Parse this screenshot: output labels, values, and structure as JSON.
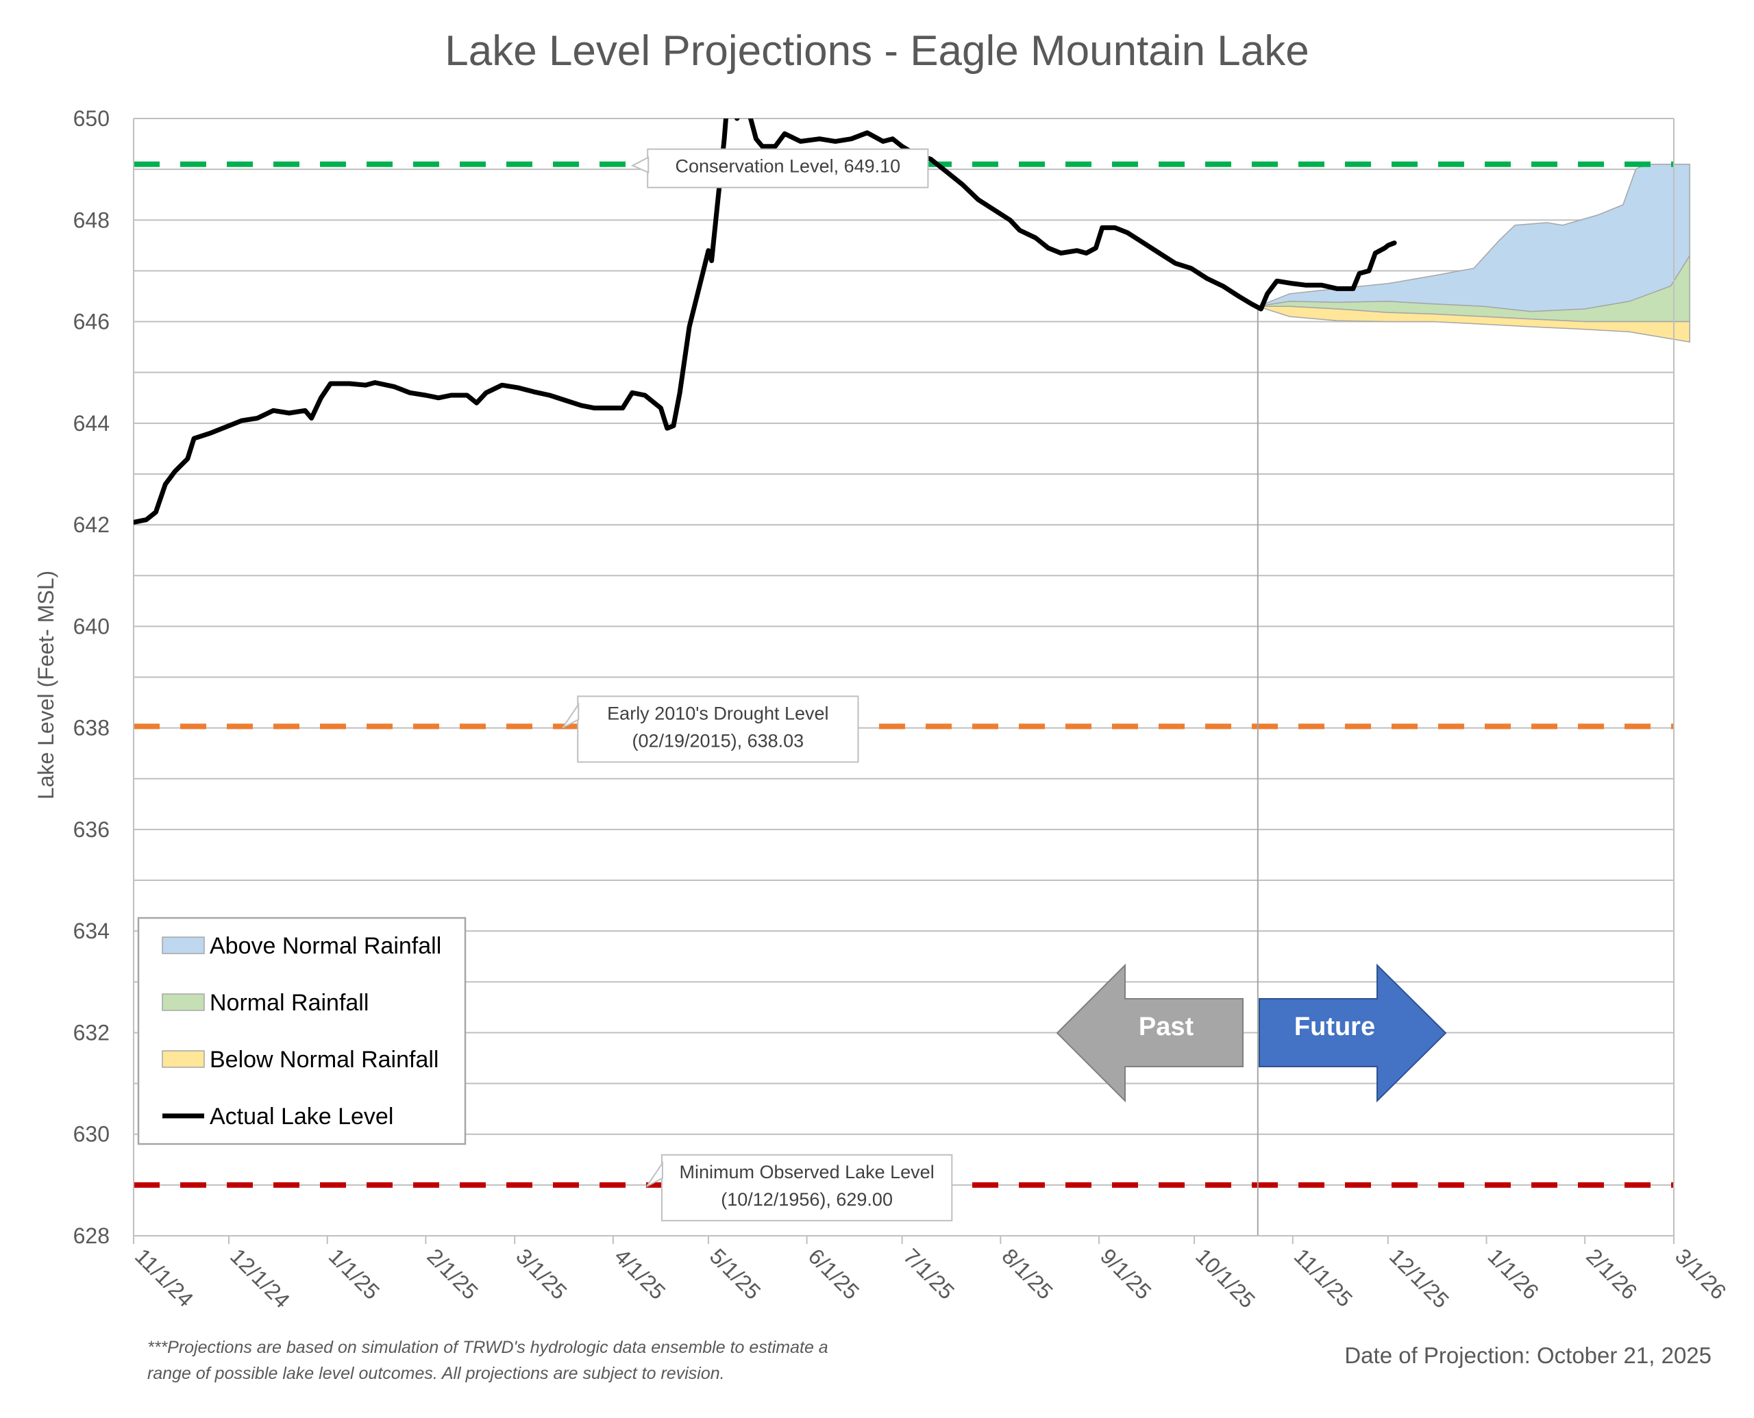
{
  "chart_data": {
    "type": "area",
    "title": "Lake Level Projections - Eagle Mountain Lake",
    "ylabel": "Lake Level (Feet- MSL)",
    "xlabel": "",
    "ylim": [
      628,
      650
    ],
    "yticks": [
      628,
      630,
      632,
      634,
      636,
      638,
      640,
      642,
      644,
      646,
      648,
      650
    ],
    "x_tick_labels": [
      "11/1/24",
      "12/1/24",
      "1/1/25",
      "2/1/25",
      "3/1/25",
      "4/1/25",
      "5/1/25",
      "6/1/25",
      "7/1/25",
      "8/1/25",
      "9/1/25",
      "10/1/25",
      "11/1/25",
      "12/1/25",
      "1/1/26",
      "2/1/26",
      "3/1/26"
    ],
    "x_tick_dates": [
      "2024-11-01",
      "2024-12-01",
      "2025-01-01",
      "2025-02-01",
      "2025-03-01",
      "2025-04-01",
      "2025-05-01",
      "2025-06-01",
      "2025-07-01",
      "2025-08-01",
      "2025-09-01",
      "2025-10-01",
      "2025-11-01",
      "2025-12-01",
      "2026-01-01",
      "2026-02-01",
      "2026-03-01"
    ],
    "xlim": [
      "2024-11-01",
      "2026-03-01"
    ],
    "grid": true,
    "legend_position": "bottom-left",
    "projection_date": "2025-10-21",
    "reference_lines": [
      {
        "name": "Conservation Level",
        "value": 649.1,
        "color": "#00b050",
        "label": "Conservation Level, 649.10",
        "label_date": "2025-05-26"
      },
      {
        "name": "Early 2010's Drought Level",
        "value": 638.03,
        "color": "#ed7d31",
        "label_lines": [
          "Early 2010's Drought Level",
          "(02/19/2015), 638.03"
        ],
        "label_date": "2025-05-04"
      },
      {
        "name": "Minimum Observed Lake Level",
        "value": 629.0,
        "color": "#c00000",
        "label_lines": [
          "Minimum Observed Lake Level",
          "(10/12/1956), 629.00"
        ],
        "label_date": "2025-06-01"
      }
    ],
    "series": [
      {
        "name": "Actual Lake Level",
        "type": "line",
        "color": "#000000",
        "points": [
          [
            "2024-11-01",
            642.05
          ],
          [
            "2024-11-05",
            642.1
          ],
          [
            "2024-11-08",
            642.25
          ],
          [
            "2024-11-11",
            642.8
          ],
          [
            "2024-11-14",
            643.05
          ],
          [
            "2024-11-18",
            643.3
          ],
          [
            "2024-11-20",
            643.7
          ],
          [
            "2024-11-25",
            643.8
          ],
          [
            "2024-12-01",
            643.95
          ],
          [
            "2024-12-05",
            644.05
          ],
          [
            "2024-12-10",
            644.1
          ],
          [
            "2024-12-15",
            644.25
          ],
          [
            "2024-12-20",
            644.2
          ],
          [
            "2024-12-25",
            644.25
          ],
          [
            "2024-12-27",
            644.1
          ],
          [
            "2024-12-30",
            644.5
          ],
          [
            "2025-01-02",
            644.78
          ],
          [
            "2025-01-08",
            644.78
          ],
          [
            "2025-01-13",
            644.75
          ],
          [
            "2025-01-16",
            644.8
          ],
          [
            "2025-01-22",
            644.72
          ],
          [
            "2025-01-27",
            644.6
          ],
          [
            "2025-02-01",
            644.55
          ],
          [
            "2025-02-05",
            644.5
          ],
          [
            "2025-02-09",
            644.55
          ],
          [
            "2025-02-14",
            644.55
          ],
          [
            "2025-02-17",
            644.4
          ],
          [
            "2025-02-20",
            644.6
          ],
          [
            "2025-02-25",
            644.75
          ],
          [
            "2025-03-02",
            644.7
          ],
          [
            "2025-03-07",
            644.62
          ],
          [
            "2025-03-12",
            644.55
          ],
          [
            "2025-03-17",
            644.45
          ],
          [
            "2025-03-22",
            644.35
          ],
          [
            "2025-03-26",
            644.3
          ],
          [
            "2025-03-31",
            644.3
          ],
          [
            "2025-04-04",
            644.3
          ],
          [
            "2025-04-07",
            644.6
          ],
          [
            "2025-04-11",
            644.55
          ],
          [
            "2025-04-14",
            644.4
          ],
          [
            "2025-04-16",
            644.3
          ],
          [
            "2025-04-18",
            643.9
          ],
          [
            "2025-04-20",
            643.95
          ],
          [
            "2025-04-22",
            644.6
          ],
          [
            "2025-04-25",
            645.9
          ],
          [
            "2025-04-29",
            646.9
          ],
          [
            "2025-05-01",
            647.4
          ],
          [
            "2025-05-02",
            647.2
          ],
          [
            "2025-05-04",
            648.4
          ],
          [
            "2025-05-06",
            649.6
          ],
          [
            "2025-05-07",
            650.4
          ],
          [
            "2025-05-10",
            650.0
          ],
          [
            "2025-05-13",
            650.3
          ],
          [
            "2025-05-16",
            649.6
          ],
          [
            "2025-05-18",
            649.45
          ],
          [
            "2025-05-22",
            649.45
          ],
          [
            "2025-05-25",
            649.7
          ],
          [
            "2025-05-30",
            649.55
          ],
          [
            "2025-06-05",
            649.6
          ],
          [
            "2025-06-10",
            649.55
          ],
          [
            "2025-06-15",
            649.6
          ],
          [
            "2025-06-20",
            649.72
          ],
          [
            "2025-06-25",
            649.55
          ],
          [
            "2025-06-28",
            649.6
          ],
          [
            "2025-07-01",
            649.45
          ],
          [
            "2025-07-05",
            649.3
          ],
          [
            "2025-07-10",
            649.2
          ],
          [
            "2025-07-15",
            648.95
          ],
          [
            "2025-07-20",
            648.7
          ],
          [
            "2025-07-25",
            648.4
          ],
          [
            "2025-07-30",
            648.2
          ],
          [
            "2025-08-04",
            648.0
          ],
          [
            "2025-08-07",
            647.8
          ],
          [
            "2025-08-12",
            647.65
          ],
          [
            "2025-08-16",
            647.45
          ],
          [
            "2025-08-20",
            647.35
          ],
          [
            "2025-08-25",
            647.4
          ],
          [
            "2025-08-28",
            647.35
          ],
          [
            "2025-08-31",
            647.45
          ],
          [
            "2025-09-02",
            647.85
          ],
          [
            "2025-09-06",
            647.85
          ],
          [
            "2025-09-10",
            647.75
          ],
          [
            "2025-09-15",
            647.55
          ],
          [
            "2025-09-20",
            647.35
          ],
          [
            "2025-09-25",
            647.15
          ],
          [
            "2025-09-30",
            647.05
          ],
          [
            "2025-10-05",
            646.85
          ],
          [
            "2025-10-10",
            646.7
          ],
          [
            "2025-10-15",
            646.5
          ],
          [
            "2025-10-19",
            646.35
          ],
          [
            "2025-10-22",
            646.25
          ],
          [
            "2025-10-24",
            646.55
          ],
          [
            "2025-10-27",
            646.8
          ],
          [
            "2025-11-01",
            646.75
          ],
          [
            "2025-11-05",
            646.72
          ],
          [
            "2025-11-10",
            646.72
          ],
          [
            "2025-11-15",
            646.65
          ],
          [
            "2025-11-20",
            646.65
          ],
          [
            "2025-11-22",
            646.95
          ],
          [
            "2025-11-25",
            647.0
          ],
          [
            "2025-11-27",
            647.35
          ],
          [
            "2025-11-30",
            647.45
          ],
          [
            "2025-12-01",
            647.5
          ],
          [
            "2025-12-03",
            647.55
          ]
        ]
      },
      {
        "name": "Above Normal Rainfall",
        "type": "band",
        "fill": "#bdd7ee",
        "upper": [
          [
            "2025-10-21",
            646.3
          ],
          [
            "2025-10-31",
            646.55
          ],
          [
            "2025-11-15",
            646.65
          ],
          [
            "2025-12-01",
            646.75
          ],
          [
            "2025-12-15",
            646.9
          ],
          [
            "2025-12-28",
            647.05
          ],
          [
            "2026-01-05",
            647.6
          ],
          [
            "2026-01-10",
            647.9
          ],
          [
            "2026-01-20",
            647.95
          ],
          [
            "2026-01-25",
            647.9
          ],
          [
            "2026-02-05",
            648.1
          ],
          [
            "2026-02-13",
            648.3
          ],
          [
            "2026-02-17",
            649.0
          ],
          [
            "2026-02-20",
            649.1
          ],
          [
            "2026-03-06",
            649.1
          ]
        ],
        "lower": [
          [
            "2025-10-21",
            646.3
          ],
          [
            "2025-10-31",
            646.4
          ],
          [
            "2025-11-15",
            646.38
          ],
          [
            "2025-12-01",
            646.4
          ],
          [
            "2025-12-15",
            646.35
          ],
          [
            "2025-12-31",
            646.3
          ],
          [
            "2026-01-15",
            646.2
          ],
          [
            "2026-02-01",
            646.25
          ],
          [
            "2026-02-15",
            646.4
          ],
          [
            "2026-02-28",
            646.7
          ],
          [
            "2026-03-06",
            647.3
          ]
        ]
      },
      {
        "name": "Normal Rainfall",
        "type": "band",
        "fill": "#c5e0b4",
        "upper": [
          [
            "2025-10-21",
            646.3
          ],
          [
            "2025-10-31",
            646.4
          ],
          [
            "2025-11-15",
            646.38
          ],
          [
            "2025-12-01",
            646.4
          ],
          [
            "2025-12-15",
            646.35
          ],
          [
            "2025-12-31",
            646.3
          ],
          [
            "2026-01-15",
            646.2
          ],
          [
            "2026-02-01",
            646.25
          ],
          [
            "2026-02-15",
            646.4
          ],
          [
            "2026-02-28",
            646.7
          ],
          [
            "2026-03-06",
            647.3
          ]
        ],
        "lower": [
          [
            "2025-10-21",
            646.3
          ],
          [
            "2025-10-31",
            646.3
          ],
          [
            "2025-11-15",
            646.25
          ],
          [
            "2025-12-01",
            646.18
          ],
          [
            "2025-12-15",
            646.15
          ],
          [
            "2025-12-31",
            646.1
          ],
          [
            "2026-01-15",
            646.05
          ],
          [
            "2026-02-01",
            646.0
          ],
          [
            "2026-02-15",
            646.0
          ],
          [
            "2026-03-06",
            646.0
          ]
        ]
      },
      {
        "name": "Below Normal Rainfall",
        "type": "band",
        "fill": "#ffe699",
        "upper": [
          [
            "2025-10-21",
            646.3
          ],
          [
            "2025-10-31",
            646.3
          ],
          [
            "2025-11-15",
            646.25
          ],
          [
            "2025-12-01",
            646.18
          ],
          [
            "2025-12-15",
            646.15
          ],
          [
            "2025-12-31",
            646.1
          ],
          [
            "2026-01-15",
            646.05
          ],
          [
            "2026-02-01",
            646.0
          ],
          [
            "2026-02-15",
            646.0
          ],
          [
            "2026-03-06",
            646.0
          ]
        ],
        "lower": [
          [
            "2025-10-21",
            646.3
          ],
          [
            "2025-10-31",
            646.1
          ],
          [
            "2025-11-15",
            646.02
          ],
          [
            "2025-12-01",
            646.0
          ],
          [
            "2025-12-15",
            646.0
          ],
          [
            "2025-12-31",
            645.95
          ],
          [
            "2026-01-15",
            645.9
          ],
          [
            "2026-02-01",
            645.85
          ],
          [
            "2026-02-15",
            645.8
          ],
          [
            "2026-03-06",
            645.6
          ]
        ]
      }
    ],
    "legend": [
      {
        "label": "Above Normal Rainfall",
        "kind": "fill",
        "color": "#bdd7ee"
      },
      {
        "label": "Normal Rainfall",
        "kind": "fill",
        "color": "#c5e0b4"
      },
      {
        "label": "Below Normal Rainfall",
        "kind": "fill",
        "color": "#ffe699"
      },
      {
        "label": "Actual Lake Level",
        "kind": "line",
        "color": "#000000"
      }
    ],
    "arrows": {
      "past_label": "Past",
      "future_label": "Future",
      "past_color": "#a6a6a6",
      "future_color": "#4472c4"
    },
    "footnote_lines": [
      "***Projections are based on simulation of TRWD's hydrologic data ensemble to estimate a",
      "range of possible lake level outcomes.  All projections are subject to revision."
    ],
    "date_of_projection": "Date of Projection: October 21, 2025"
  }
}
